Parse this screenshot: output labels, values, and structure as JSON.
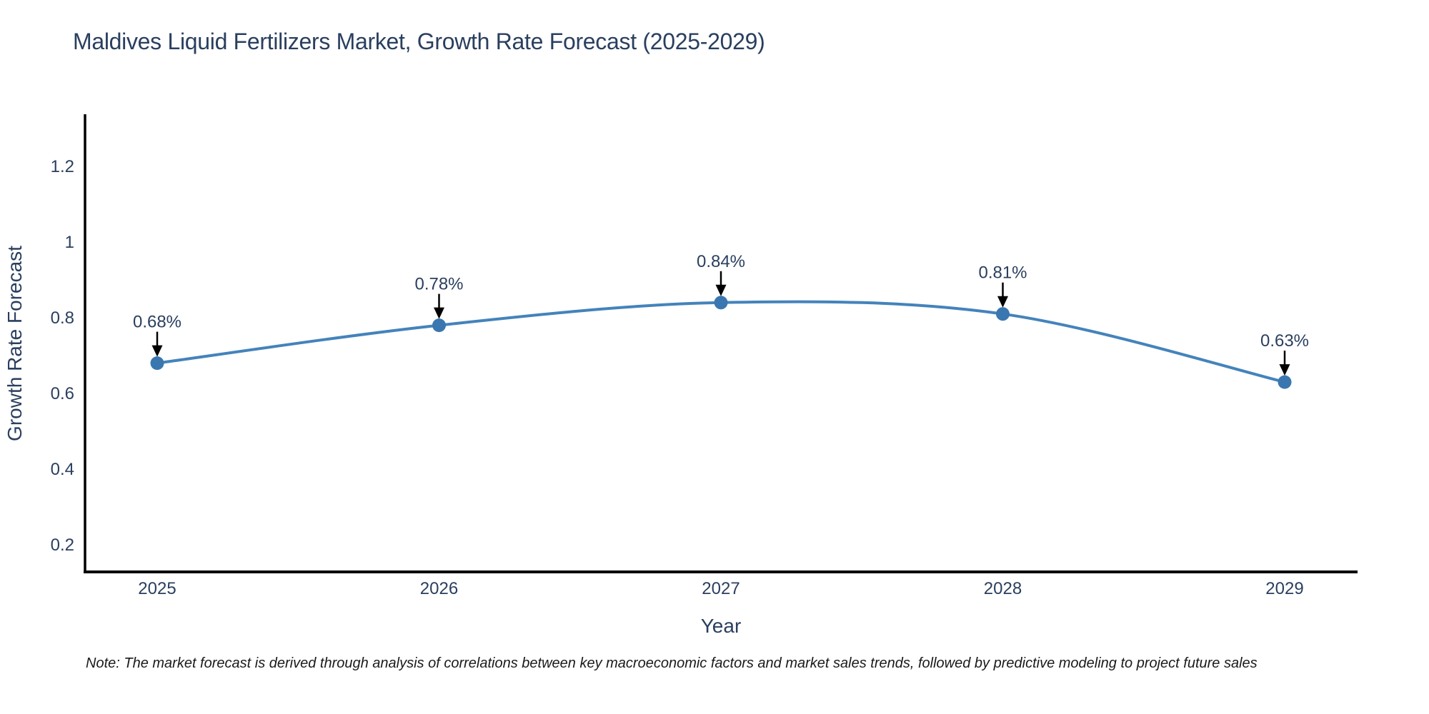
{
  "title": "Maldives Liquid Fertilizers Market, Growth Rate Forecast (2025-2029)",
  "note": "Note: The market forecast is derived through analysis of correlations between key macroeconomic factors and market sales trends, followed by predictive modeling to project future sales",
  "chart_data": {
    "type": "line",
    "title": "Maldives Liquid Fertilizers Market, Growth Rate Forecast (2025-2029)",
    "xlabel": "Year",
    "ylabel": "Growth Rate Forecast",
    "categories": [
      "2025",
      "2026",
      "2027",
      "2028",
      "2029"
    ],
    "series": [
      {
        "name": "Growth Rate Forecast",
        "values": [
          0.68,
          0.78,
          0.84,
          0.81,
          0.63
        ],
        "point_labels": [
          "0.68%",
          "0.78%",
          "0.84%",
          "0.81%",
          "0.63%"
        ]
      }
    ],
    "yticks": [
      "0.2",
      "0.4",
      "0.6",
      "0.8",
      "1",
      "1.2"
    ],
    "ytick_values": [
      0.2,
      0.4,
      0.6,
      0.8,
      1.0,
      1.2
    ],
    "ylim": [
      0.126,
      1.338
    ],
    "grid": false,
    "legend_position": "none",
    "line_shape": "spline",
    "annotations": "value labels with downward arrows above each point",
    "colors": {
      "line": "#4483bb",
      "marker": "#3a77b0",
      "arrow": "#000000",
      "axis": "#000000",
      "text": "#2a3f5f",
      "note_text": "#1a1a1a",
      "background": "#ffffff"
    }
  }
}
